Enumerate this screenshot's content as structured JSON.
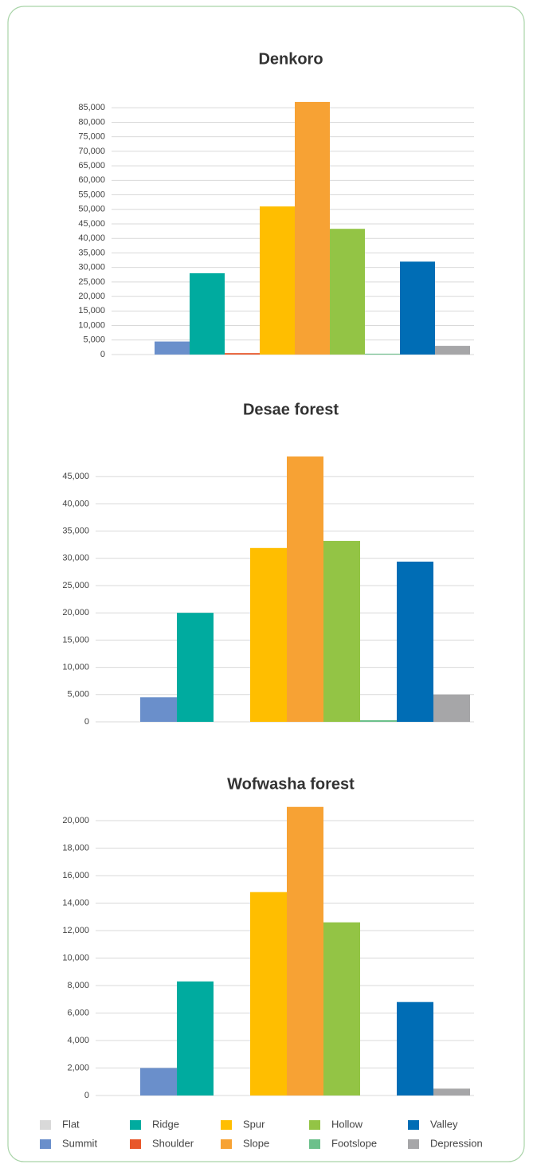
{
  "chart_data": [
    {
      "type": "bar",
      "title": "Denkoro",
      "values": [
        0,
        4500,
        28000,
        500,
        51000,
        87000,
        43300,
        300,
        32000,
        3000
      ],
      "ylim": [
        0,
        90000
      ],
      "yticks": [
        0,
        {
          "value": 5000,
          "label": "5,000"
        },
        {
          "value": 10000,
          "label": "10,000"
        },
        {
          "value": 15000,
          "label": "15,000"
        },
        {
          "value": 20000,
          "label": "20,000"
        },
        {
          "value": 25000,
          "label": "25,000"
        },
        {
          "value": 30000,
          "label": "30,000"
        },
        {
          "value": 35000,
          "label": "35,000"
        },
        {
          "value": 40000,
          "label": "40,000"
        },
        {
          "value": 45000,
          "label": "45,000"
        },
        {
          "value": 50000,
          "label": "50,000"
        },
        {
          "value": 55000,
          "label": "55,000"
        },
        {
          "value": 60000,
          "label": "60,000"
        },
        {
          "value": 65000,
          "label": "65,000"
        },
        {
          "value": 70000,
          "label": "70,000"
        },
        {
          "value": 75000,
          "label": "75,000"
        },
        {
          "value": 80000,
          "label": "80,000"
        },
        {
          "value": 85000,
          "label": "85,000"
        }
      ],
      "grid": true
    },
    {
      "type": "bar",
      "title": "Desae forest",
      "values": [
        0,
        4500,
        20000,
        0,
        31900,
        48700,
        33200,
        300,
        29400,
        5000
      ],
      "ylim": [
        0,
        50000
      ],
      "yticks": [
        0,
        {
          "value": 5000,
          "label": "5,000"
        },
        {
          "value": 10000,
          "label": "10,000"
        },
        {
          "value": 15000,
          "label": "15,000"
        },
        {
          "value": 20000,
          "label": "20,000"
        },
        {
          "value": 25000,
          "label": "25,000"
        },
        {
          "value": 30000,
          "label": "30,000"
        },
        {
          "value": 35000,
          "label": "35,000"
        },
        {
          "value": 40000,
          "label": "40,000"
        },
        {
          "value": 45000,
          "label": "45,000"
        }
      ],
      "grid": true
    },
    {
      "type": "bar",
      "title": "Wofwasha forest",
      "values": [
        0,
        2000,
        8300,
        0,
        14800,
        21000,
        12600,
        0,
        6800,
        500
      ],
      "ylim": [
        0,
        22000
      ],
      "yticks": [
        0,
        {
          "value": 2000,
          "label": "2,000"
        },
        {
          "value": 4000,
          "label": "4,000"
        },
        {
          "value": 6000,
          "label": "6,000"
        },
        {
          "value": 8000,
          "label": "8,000"
        },
        {
          "value": 10000,
          "label": "10,000"
        },
        {
          "value": 12000,
          "label": "12,000"
        },
        {
          "value": 14000,
          "label": "14,000"
        },
        {
          "value": 16000,
          "label": "16,000"
        },
        {
          "value": 18000,
          "label": "18,000"
        },
        {
          "value": 20000,
          "label": "20,000"
        }
      ],
      "grid": true
    }
  ],
  "legend": [
    {
      "name": "Flat",
      "color": "#d9d9d9"
    },
    {
      "name": "Summit",
      "color": "#6a8fcb"
    },
    {
      "name": "Ridge",
      "color": "#00ab9f"
    },
    {
      "name": "Shoulder",
      "color": "#e8572a"
    },
    {
      "name": "Spur",
      "color": "#ffbe00"
    },
    {
      "name": "Slope",
      "color": "#f7a234"
    },
    {
      "name": "Hollow",
      "color": "#93c445"
    },
    {
      "name": "Footslope",
      "color": "#6cc08b"
    },
    {
      "name": "Valley",
      "color": "#006db5"
    },
    {
      "name": "Depression",
      "color": "#a6a6a8"
    }
  ]
}
